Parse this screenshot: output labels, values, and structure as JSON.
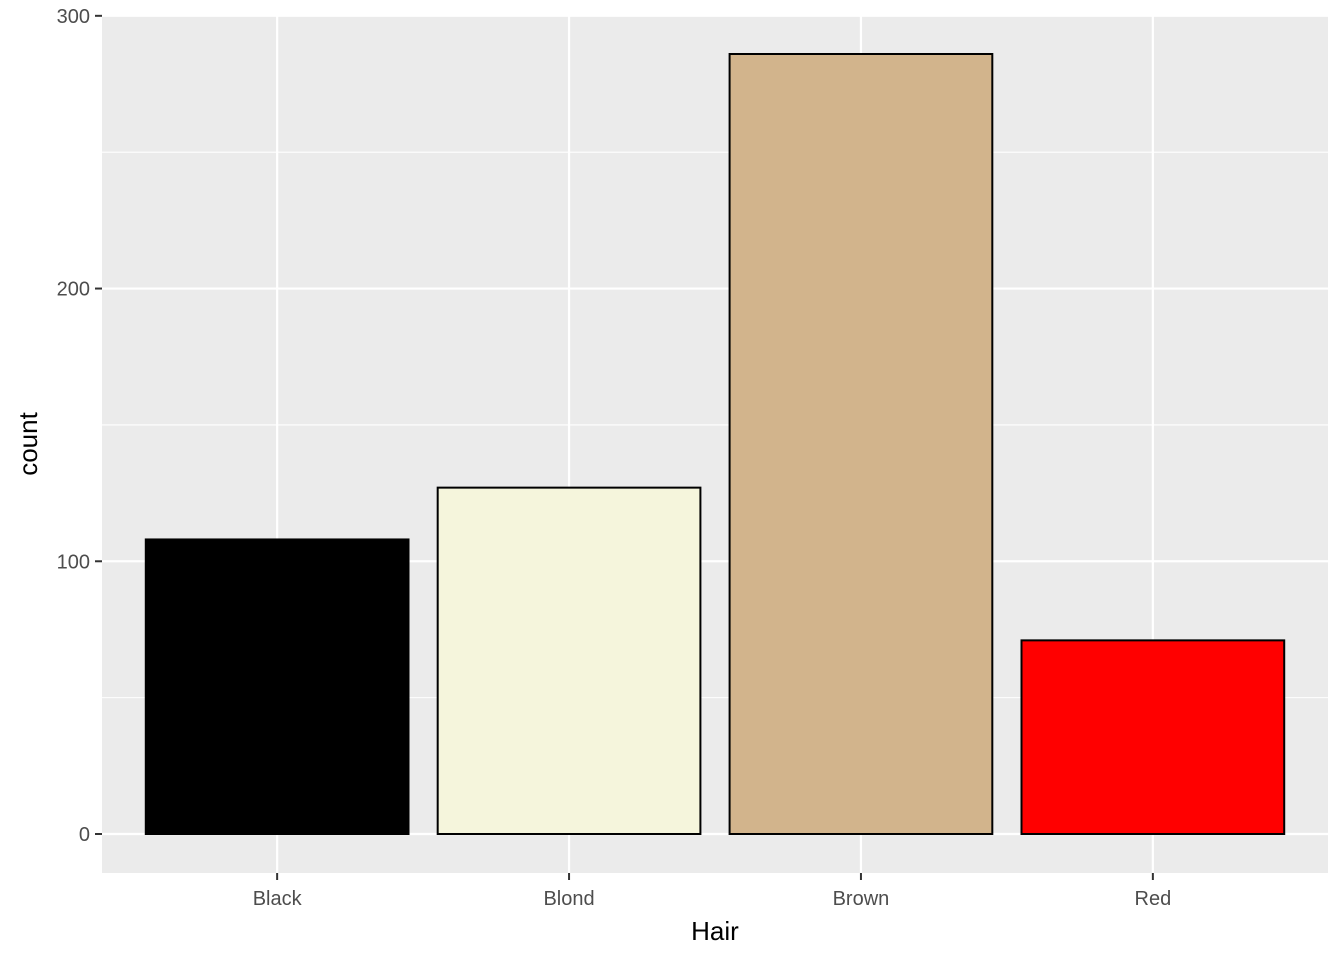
{
  "chart_data": {
    "type": "bar",
    "title": "",
    "xlabel": "Hair",
    "ylabel": "count",
    "categories": [
      "Black",
      "Blond",
      "Brown",
      "Red"
    ],
    "values": [
      108,
      127,
      286,
      71
    ],
    "colors": [
      "#000000",
      "#F5F5DC",
      "#D2B48C",
      "#FF0000"
    ],
    "bar_outline_color": "#000000",
    "yticks": [
      0,
      100,
      200,
      300
    ],
    "ylim": [
      -14.3,
      300.3
    ],
    "grid": true,
    "panel_background": "#EBEBEB",
    "grid_color": "#FFFFFF",
    "legend": "none"
  }
}
